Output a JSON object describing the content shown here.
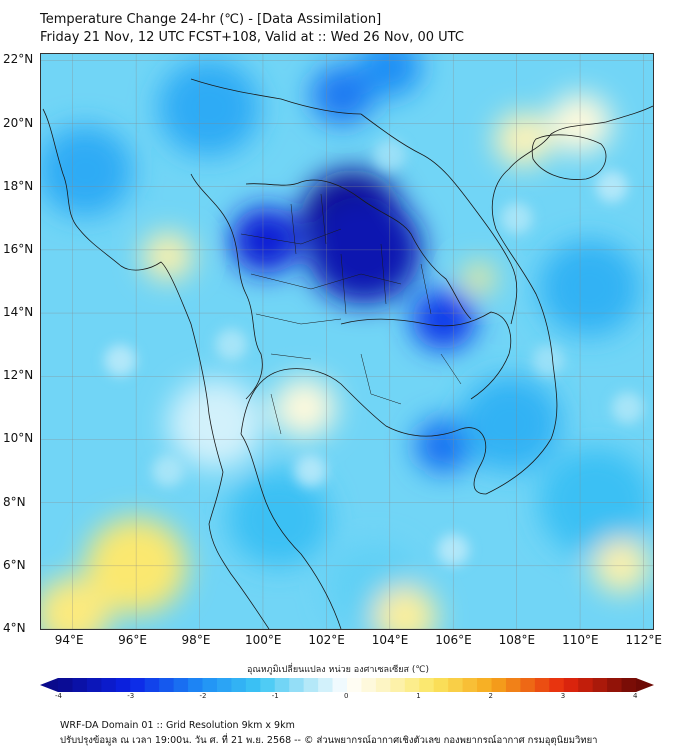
{
  "title": {
    "line1": "Temperature Change 24-hr (℃) - [Data Assimilation]",
    "line2": "Friday 21 Nov, 12 UTC FCST+108, Valid at :: Wed 26 Nov, 00 UTC"
  },
  "map": {
    "lat_labels": [
      "22°N",
      "20°N",
      "18°N",
      "16°N",
      "14°N",
      "12°N",
      "10°N",
      "8°N",
      "6°N",
      "4°N"
    ],
    "lon_labels": [
      "94°E",
      "96°E",
      "98°E",
      "100°E",
      "102°E",
      "104°E",
      "106°E",
      "108°E",
      "110°E",
      "112°E"
    ],
    "lat_values": [
      22,
      20,
      18,
      16,
      14,
      12,
      10,
      8,
      6,
      4
    ],
    "lon_values": [
      94,
      96,
      98,
      100,
      102,
      104,
      106,
      108,
      110,
      112
    ],
    "lon_range": [
      93,
      112.3
    ],
    "lat_range": [
      4,
      22.2
    ],
    "field_blobs": [
      {
        "lon": 102.8,
        "lat": 17.0,
        "value": -4.0,
        "r": 1.6
      },
      {
        "lon": 103.2,
        "lat": 16.0,
        "value": -3.6,
        "r": 1.8
      },
      {
        "lon": 100.1,
        "lat": 16.3,
        "value": -3.2,
        "r": 1.1
      },
      {
        "lon": 105.7,
        "lat": 13.8,
        "value": -2.8,
        "r": 1.0
      },
      {
        "lon": 105.7,
        "lat": 9.8,
        "value": -2.3,
        "r": 0.9
      },
      {
        "lon": 102.5,
        "lat": 20.9,
        "value": -2.2,
        "r": 1.0
      },
      {
        "lon": 104.0,
        "lat": 21.8,
        "value": -2.0,
        "r": 1.0
      },
      {
        "lon": 98.3,
        "lat": 20.5,
        "value": -1.6,
        "r": 1.6
      },
      {
        "lon": 94.4,
        "lat": 18.5,
        "value": -1.6,
        "r": 1.5
      },
      {
        "lon": 107.8,
        "lat": 10.5,
        "value": -1.5,
        "r": 1.6
      },
      {
        "lon": 110.3,
        "lat": 14.8,
        "value": -1.5,
        "r": 1.6
      },
      {
        "lon": 110.5,
        "lat": 8.0,
        "value": -1.3,
        "r": 1.8
      },
      {
        "lon": 100.5,
        "lat": 7.5,
        "value": -1.3,
        "r": 1.6
      },
      {
        "lon": 103.5,
        "lat": 5.3,
        "value": -1.0,
        "r": 1.5
      },
      {
        "lon": 96.0,
        "lat": 6.0,
        "value": 1.1,
        "r": 1.6
      },
      {
        "lon": 94.0,
        "lat": 4.5,
        "value": 1.0,
        "r": 1.2
      },
      {
        "lon": 97.0,
        "lat": 15.8,
        "value": 0.7,
        "r": 0.8
      },
      {
        "lon": 106.8,
        "lat": 15.1,
        "value": 0.9,
        "r": 0.5
      },
      {
        "lon": 108.2,
        "lat": 19.5,
        "value": 0.6,
        "r": 0.9
      },
      {
        "lon": 110.0,
        "lat": 20.0,
        "value": 0.3,
        "r": 1.0
      },
      {
        "lon": 104.5,
        "lat": 4.4,
        "value": 0.8,
        "r": 1.0
      },
      {
        "lon": 101.3,
        "lat": 11.0,
        "value": 0.3,
        "r": 1.0
      },
      {
        "lon": 111.3,
        "lat": 6.0,
        "value": 0.7,
        "r": 0.9
      },
      {
        "lon": 98.5,
        "lat": 10.5,
        "value": -0.3,
        "r": 1.5
      }
    ],
    "background_value": -0.9
  },
  "colorbar": {
    "label": "อุณหภูมิเปลี่ยนแปลง หน่วย องศาเซลเซียส (℃)",
    "ticks": [
      "-4",
      "-3",
      "-2",
      "-1",
      "0",
      "1",
      "2",
      "3",
      "4"
    ],
    "min": -4,
    "max": 4,
    "stops": [
      {
        "v": -4.0,
        "c": "#0a0a8c"
      },
      {
        "v": -3.0,
        "c": "#0b22e6"
      },
      {
        "v": -2.0,
        "c": "#1f8ff5"
      },
      {
        "v": -1.2,
        "c": "#3ec7f4"
      },
      {
        "v": -0.6,
        "c": "#a5e3f7"
      },
      {
        "v": 0.0,
        "c": "#ffffff"
      },
      {
        "v": 0.6,
        "c": "#fdf3b8"
      },
      {
        "v": 1.2,
        "c": "#fbe661"
      },
      {
        "v": 2.0,
        "c": "#f6a81c"
      },
      {
        "v": 3.0,
        "c": "#e6270e"
      },
      {
        "v": 4.0,
        "c": "#6e0a05"
      }
    ]
  },
  "footer": {
    "line1": "WRF-DA Domain 01 :: Grid Resolution 9km x 9km",
    "line2": "ปรับปรุงข้อมูล ณ เวลา 19:00น. วัน ศ. ที่ 21 พ.ย. 2568 -- © ส่วนพยากรณ์อากาศเชิงตัวเลข กองพยากรณ์อากาศ กรมอุตุนิยมวิทยา"
  }
}
